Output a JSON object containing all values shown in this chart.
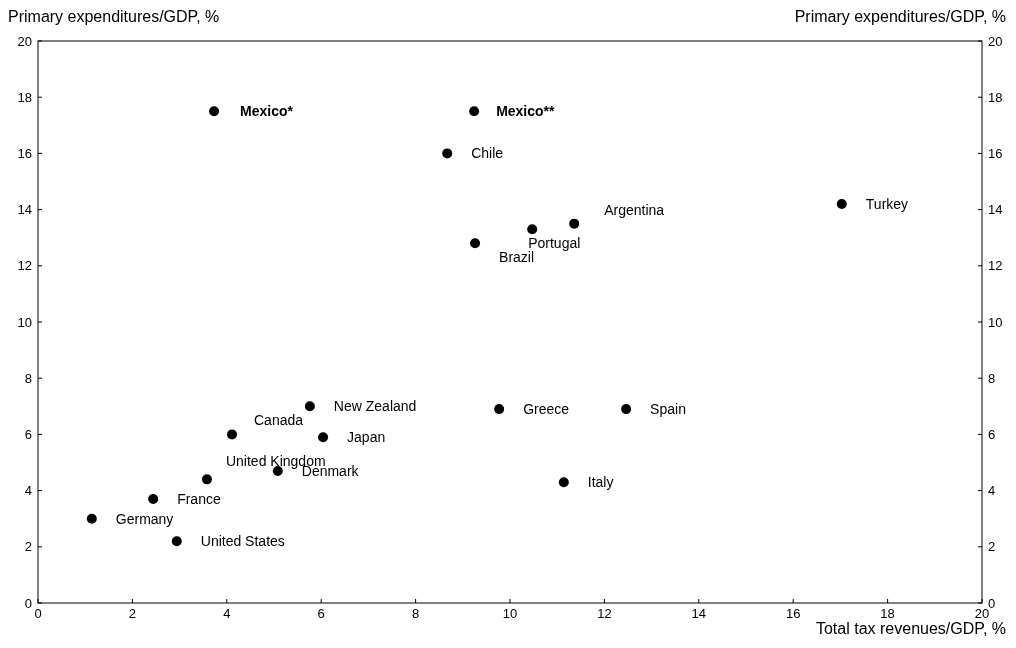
{
  "chart_data": {
    "type": "scatter",
    "xlabel": "Total tax revenues/GDP, %",
    "ylabel": "Primary expenditures/GDP, %",
    "y2label": "Primary expenditures/GDP, %",
    "x": [
      3.73,
      9.24,
      8.67,
      11.36,
      10.47,
      9.26,
      17.03,
      5.76,
      9.77,
      12.46,
      4.11,
      6.04,
      3.58,
      5.08,
      11.14,
      2.44,
      1.14,
      2.94
    ],
    "values": [
      17.5,
      17.5,
      16.0,
      13.5,
      13.3,
      12.8,
      14.2,
      7.0,
      6.9,
      6.9,
      6.0,
      5.9,
      4.4,
      4.7,
      4.3,
      3.7,
      3.0,
      2.2
    ],
    "color": "#000000",
    "marker": "circle",
    "grid": false,
    "xlim": [
      0,
      20
    ],
    "xticks": [
      0,
      2,
      4,
      6,
      8,
      10,
      12,
      14,
      16,
      18,
      20
    ],
    "ylim": [
      0,
      20
    ],
    "yticks": [
      0,
      2,
      4,
      6,
      8,
      10,
      12,
      14,
      16,
      18,
      20
    ],
    "y2lim": [
      0,
      20
    ],
    "y2ticks": [
      0,
      2,
      4,
      6,
      8,
      10,
      12,
      14,
      16,
      18,
      20
    ],
    "annotations": [
      {
        "text": "Mexico*",
        "x": 3.73,
        "y": 17.5
      },
      {
        "text": "Mexico**",
        "x": 9.24,
        "y": 17.5
      },
      {
        "text": "Chile",
        "x": 8.67,
        "y": 16.0
      },
      {
        "text": "Argentina",
        "x": 11.36,
        "y": 13.5
      },
      {
        "text": "Portugal",
        "x": 10.47,
        "y": 13.3
      },
      {
        "text": "Brazil",
        "x": 9.26,
        "y": 12.8
      },
      {
        "text": "Turkey",
        "x": 17.03,
        "y": 14.2
      },
      {
        "text": "New Zealand",
        "x": 5.76,
        "y": 7.0
      },
      {
        "text": "Greece",
        "x": 9.77,
        "y": 6.9
      },
      {
        "text": "Spain",
        "x": 12.46,
        "y": 6.9
      },
      {
        "text": "Canada",
        "x": 4.11,
        "y": 6.0
      },
      {
        "text": "Japan",
        "x": 6.04,
        "y": 5.9
      },
      {
        "text": "United Kingdom",
        "x": 3.58,
        "y": 4.4
      },
      {
        "text": "Denmark",
        "x": 5.08,
        "y": 4.7
      },
      {
        "text": "Italy",
        "x": 11.14,
        "y": 4.3
      },
      {
        "text": "France",
        "x": 2.44,
        "y": 3.7
      },
      {
        "text": "Germany",
        "x": 1.14,
        "y": 3.0
      },
      {
        "text": "United States",
        "x": 2.94,
        "y": 2.2
      }
    ]
  }
}
